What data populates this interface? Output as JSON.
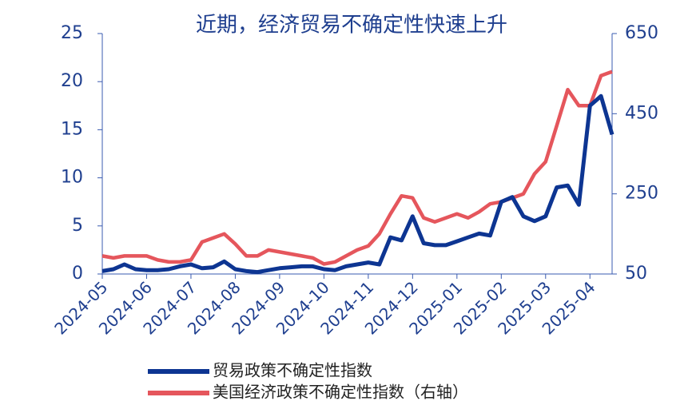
{
  "chart_data": {
    "type": "line",
    "title": "近期，经济贸易不确定性快速上升",
    "categories": [
      "2024-05",
      null,
      null,
      null,
      "2024-06",
      null,
      null,
      null,
      "2024-07",
      null,
      null,
      null,
      "2024-08",
      null,
      null,
      null,
      "2024-09",
      null,
      null,
      null,
      "2024-10",
      null,
      null,
      null,
      "2024-11",
      null,
      null,
      null,
      "2024-12",
      null,
      null,
      null,
      "2025-01",
      null,
      null,
      null,
      "2025-02",
      null,
      null,
      null,
      "2025-03",
      null,
      null,
      null,
      "2025-04",
      null,
      null
    ],
    "series": [
      {
        "name": "贸易政策不确定性指数",
        "color": "#0d3592",
        "values": [
          0.3,
          0.5,
          1.0,
          0.5,
          0.4,
          0.4,
          0.5,
          0.8,
          1.0,
          0.6,
          0.7,
          1.3,
          0.5,
          0.3,
          0.2,
          0.4,
          0.6,
          0.7,
          0.8,
          0.8,
          0.5,
          0.4,
          0.8,
          1.0,
          1.2,
          1.0,
          3.8,
          3.5,
          6.0,
          3.2,
          3.0,
          3.0,
          3.4,
          3.8,
          4.2,
          4.0,
          7.5,
          8.0,
          6.0,
          5.5,
          6.0,
          9.0,
          9.2,
          7.2,
          17.5,
          18.5,
          14.5
        ]
      },
      {
        "name": "美国经济政策不确定性指数（右轴）",
        "color": "#e5565c",
        "axis": "y2",
        "values": [
          95,
          90,
          95,
          95,
          95,
          85,
          80,
          80,
          85,
          130,
          140,
          150,
          125,
          95,
          95,
          110,
          105,
          100,
          95,
          90,
          75,
          80,
          95,
          110,
          120,
          150,
          200,
          245,
          240,
          190,
          180,
          190,
          200,
          190,
          205,
          225,
          230,
          240,
          250,
          300,
          330,
          420,
          510,
          470,
          470,
          545,
          555
        ]
      }
    ],
    "ylim": [
      0,
      25
    ],
    "yticks": [
      0,
      5,
      10,
      15,
      20,
      25
    ],
    "y2lim": [
      50,
      650
    ],
    "y2ticks": [
      50,
      250,
      450,
      650
    ]
  }
}
